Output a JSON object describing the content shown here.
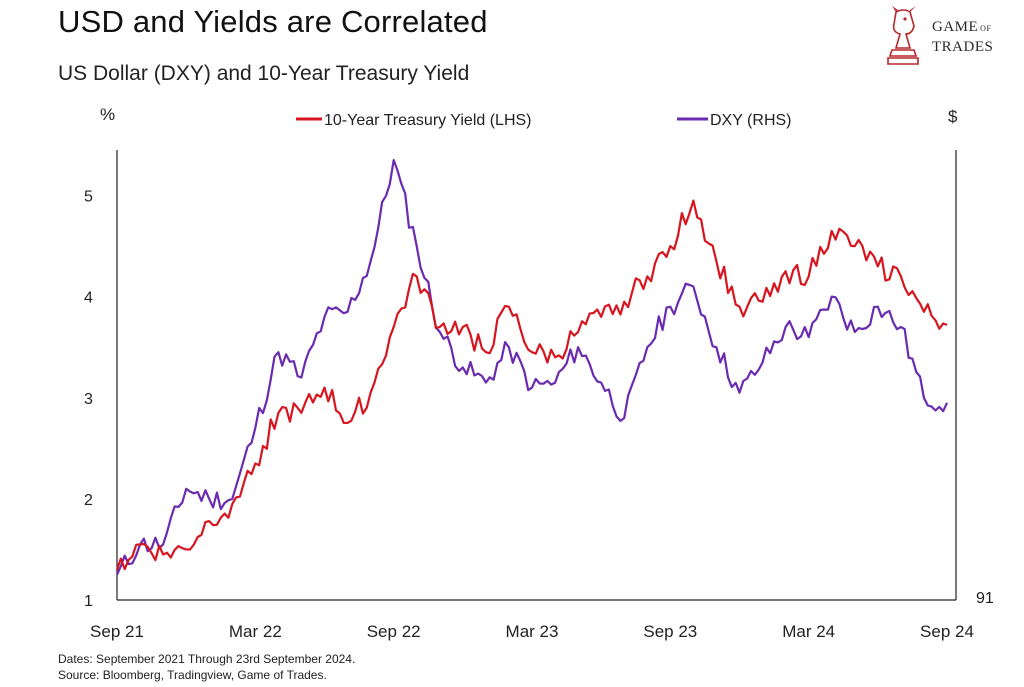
{
  "header": {
    "title": "USD and Yields are Correlated",
    "subtitle": "US Dollar (DXY) and 10-Year Treasury Yield"
  },
  "logo": {
    "line1": "GAME",
    "line1_small": "OF",
    "line2": "TRADES",
    "icon": "bull-knight-icon"
  },
  "footer": {
    "dates": "Dates: September 2021 Through 23rd September 2024.",
    "source": "Source: Bloomberg, Tradingview, Game of Trades."
  },
  "colors": {
    "yield": "#d7151f",
    "dxy": "#6a2bb0",
    "axis": "#222222"
  },
  "chart_data": {
    "type": "line",
    "left_axis_unit": "%",
    "right_axis_unit": "$",
    "ylim_left": [
      1,
      5.45
    ],
    "yticks_left": [
      1,
      2,
      3,
      4,
      5
    ],
    "right_axis_tick_label": "91",
    "xticks": [
      "Sep 21",
      "Mar 22",
      "Sep 22",
      "Mar 23",
      "Sep 23",
      "Mar 24",
      "Sep 24"
    ],
    "x_months": [
      "2021-09",
      "2021-10",
      "2021-11",
      "2021-12",
      "2022-01",
      "2022-02",
      "2022-03",
      "2022-04",
      "2022-05",
      "2022-06",
      "2022-07",
      "2022-08",
      "2022-09",
      "2022-10",
      "2022-11",
      "2022-12",
      "2023-01",
      "2023-02",
      "2023-03",
      "2023-04",
      "2023-05",
      "2023-06",
      "2023-07",
      "2023-08",
      "2023-09",
      "2023-10",
      "2023-11",
      "2023-12",
      "2024-01",
      "2024-02",
      "2024-03",
      "2024-04",
      "2024-05",
      "2024-06",
      "2024-07",
      "2024-08",
      "2024-09"
    ],
    "legend_position": "top-center",
    "series": [
      {
        "name": "10-Year Treasury Yield (LHS)",
        "axis": "left",
        "color": "#d7151f",
        "values": [
          1.3,
          1.55,
          1.45,
          1.5,
          1.78,
          1.95,
          2.35,
          2.85,
          2.85,
          3.1,
          2.75,
          3.05,
          3.7,
          4.2,
          3.7,
          3.7,
          3.45,
          3.9,
          3.45,
          3.4,
          3.65,
          3.8,
          3.95,
          4.2,
          4.5,
          4.95,
          4.35,
          3.9,
          3.95,
          4.25,
          4.2,
          4.65,
          4.5,
          4.3,
          4.2,
          3.85,
          3.72
        ]
      },
      {
        "name": "DXY (RHS)",
        "axis": "right",
        "color": "#6a2bb0",
        "values_scaled_to_left_axis": [
          1.25,
          1.55,
          1.55,
          2.1,
          2.0,
          2.0,
          2.7,
          3.45,
          3.2,
          3.8,
          3.85,
          4.35,
          5.35,
          4.5,
          3.65,
          3.3,
          3.15,
          3.5,
          3.1,
          3.15,
          3.5,
          3.15,
          2.8,
          3.5,
          3.9,
          4.1,
          3.5,
          3.05,
          3.35,
          3.7,
          3.6,
          4.0,
          3.65,
          3.9,
          3.7,
          3.0,
          2.95
        ]
      }
    ]
  }
}
